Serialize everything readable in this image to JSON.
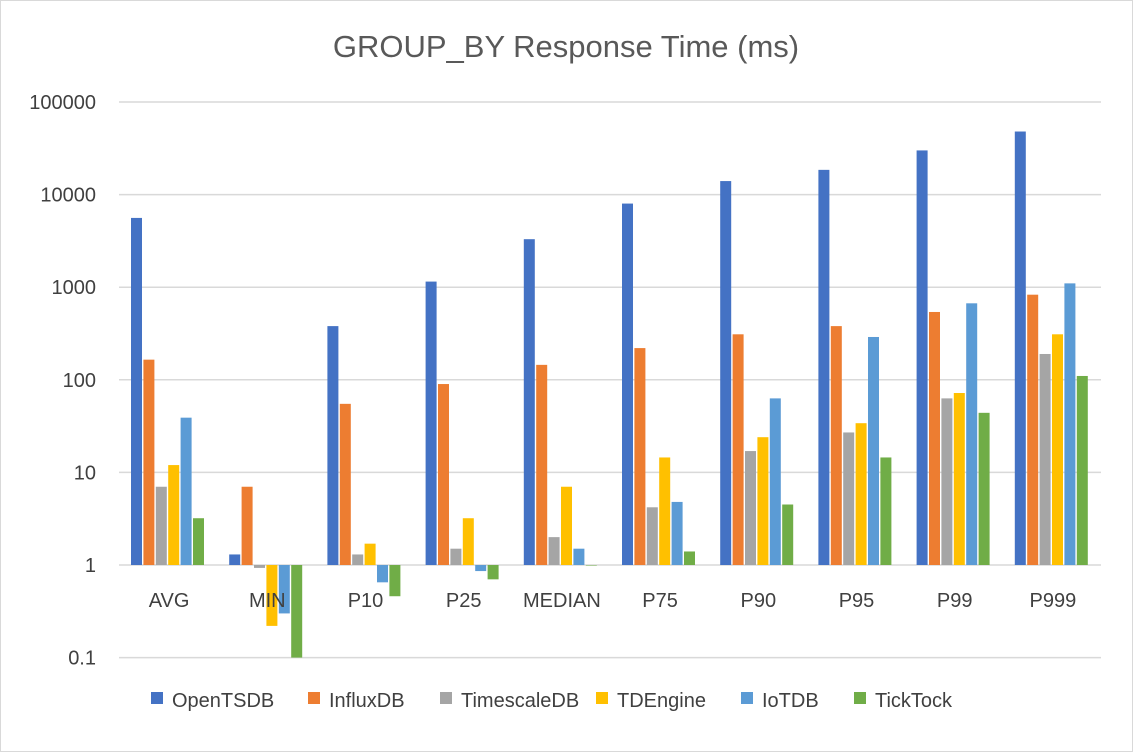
{
  "chart_data": {
    "type": "bar",
    "scale": "log",
    "title": "GROUP_BY Response Time (ms)",
    "xlabel": "",
    "ylabel": "",
    "ylim": [
      0.1,
      100000
    ],
    "y_ticks": [
      "0.1",
      "1",
      "10",
      "100",
      "1000",
      "10000",
      "100000"
    ],
    "grid": true,
    "legend_position": "bottom",
    "categories": [
      "AVG",
      "MIN",
      "P10",
      "P25",
      "MEDIAN",
      "P75",
      "P90",
      "P95",
      "P99",
      "P999"
    ],
    "series": [
      {
        "name": "OpenTSDB",
        "color": "#4472C4",
        "values": [
          5600,
          1.3,
          380,
          1150,
          3300,
          8000,
          14000,
          18500,
          30000,
          48000
        ]
      },
      {
        "name": "InfluxDB",
        "color": "#ED7D31",
        "values": [
          165,
          7,
          55,
          90,
          145,
          220,
          310,
          380,
          540,
          830
        ]
      },
      {
        "name": "TimescaleDB",
        "color": "#A5A5A5",
        "values": [
          7,
          0.93,
          1.3,
          1.5,
          2,
          4.2,
          17,
          27,
          63,
          190
        ]
      },
      {
        "name": "TDEngine",
        "color": "#FFC000",
        "values": [
          12,
          0.22,
          1.7,
          3.2,
          7,
          14.5,
          24,
          34,
          72,
          310
        ]
      },
      {
        "name": "IoTDB",
        "color": "#5B9BD5",
        "values": [
          39,
          0.3,
          0.65,
          0.86,
          1.5,
          4.8,
          63,
          290,
          670,
          1100
        ]
      },
      {
        "name": "TickTock",
        "color": "#70AD47",
        "values": [
          3.2,
          0.1,
          0.46,
          0.7,
          1,
          1.4,
          4.5,
          14.5,
          44,
          110
        ]
      }
    ]
  }
}
